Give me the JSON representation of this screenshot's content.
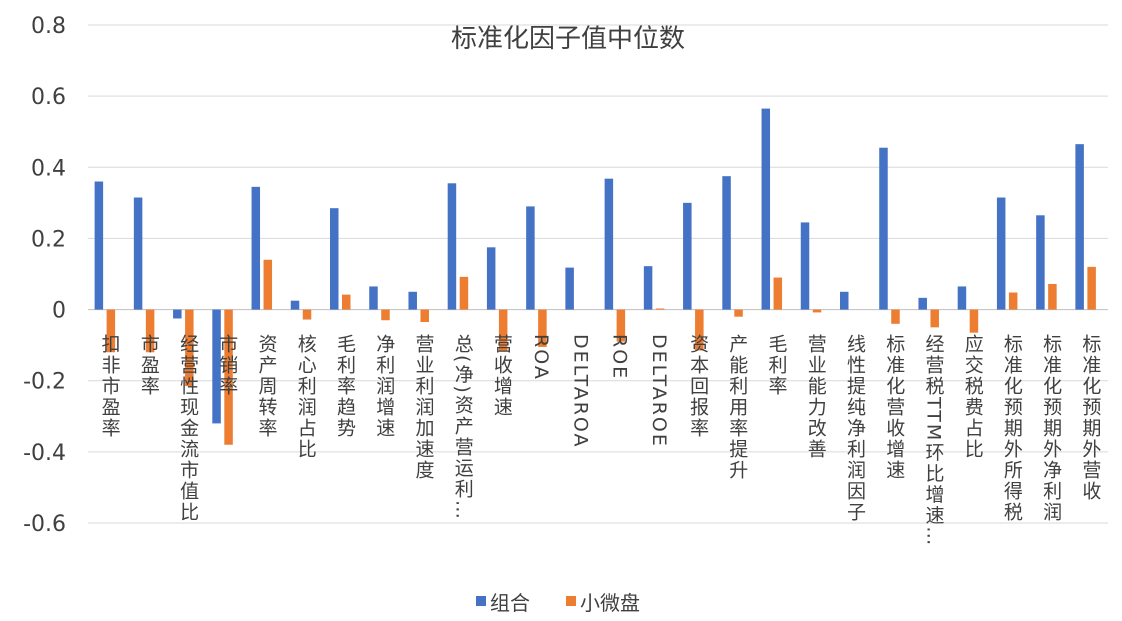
{
  "chart_data": {
    "type": "bar",
    "title": "标准化因子值中位数",
    "xlabel": "",
    "ylabel": "",
    "ylim": [
      -0.6,
      0.8
    ],
    "yticks": [
      -0.6,
      -0.4,
      -0.2,
      0,
      0.2,
      0.4,
      0.6,
      0.8
    ],
    "ytick_labels": [
      "-0.6",
      "-0.4",
      "-0.2",
      "0",
      "0.2",
      "0.4",
      "0.6",
      "0.8"
    ],
    "grid": true,
    "legend_position": "bottom",
    "categories": [
      "扣非市盈率",
      "市盈率",
      "经营性现金流市值比",
      "市销率",
      "资产周转率",
      "核心利润占比",
      "毛利率趋势",
      "净利润增速",
      "营业利润加速度",
      "总(净)资产营运利…",
      "营收增速",
      "ROA",
      "DELTAROA",
      "ROE",
      "DELTAROE",
      "资本回报率",
      "产能利用率提升",
      "毛利率",
      "营业能力改善",
      "线性提纯净利润因子",
      "标准化营收增速",
      "经营税TTM环比增速…",
      "应交税费占比",
      "标准化预期外所得税",
      "标准化预期外净利润",
      "标准化预期外营收"
    ],
    "series": [
      {
        "name": "组合",
        "color": "#4472C4",
        "values": [
          0.36,
          0.315,
          -0.025,
          -0.32,
          0.345,
          0.025,
          0.285,
          0.065,
          0.05,
          0.355,
          0.175,
          0.29,
          0.118,
          0.368,
          0.122,
          0.3,
          0.375,
          0.565,
          0.245,
          0.05,
          0.455,
          0.033,
          0.065,
          0.315,
          0.265,
          0.465
        ]
      },
      {
        "name": "小微盘",
        "color": "#ED7D31",
        "values": [
          -0.12,
          -0.12,
          -0.215,
          -0.38,
          0.14,
          -0.028,
          0.042,
          -0.03,
          -0.035,
          0.092,
          -0.115,
          -0.105,
          0.0,
          -0.09,
          0.003,
          -0.115,
          -0.02,
          0.09,
          -0.008,
          0.0,
          -0.04,
          -0.05,
          -0.065,
          0.048,
          0.072,
          0.12
        ]
      }
    ]
  }
}
